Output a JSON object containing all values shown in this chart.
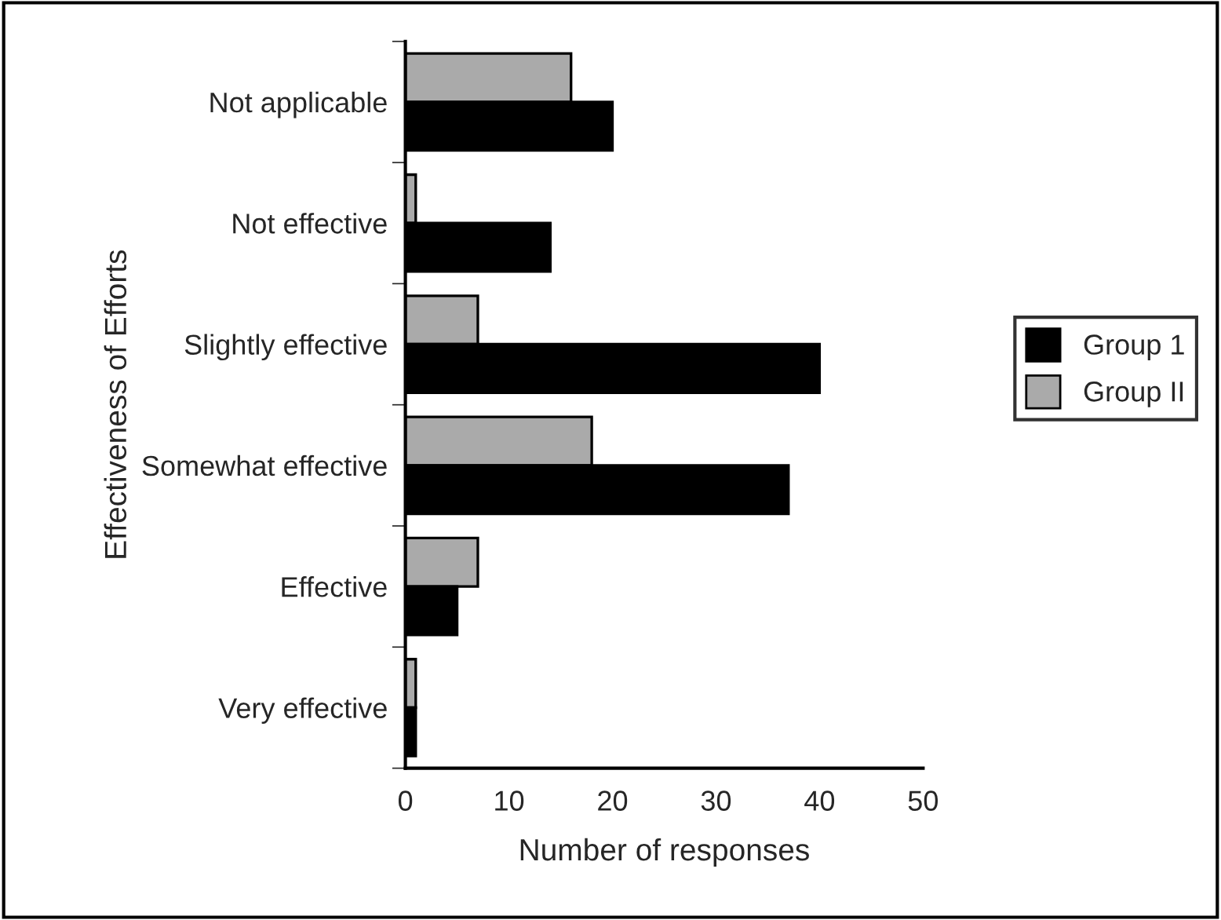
{
  "chart_data": {
    "type": "bar",
    "orientation": "horizontal",
    "xlabel": "Number of responses",
    "ylabel": "Effectiveness of Efforts",
    "categories": [
      "Not applicable",
      "Not effective",
      "Slightly effective",
      "Somewhat effective",
      "Effective",
      "Very effective"
    ],
    "series": [
      {
        "name": "Group II",
        "color": "#aaaaaa",
        "values": [
          16,
          1,
          7,
          18,
          7,
          1
        ]
      },
      {
        "name": "Group 1",
        "color": "#000000",
        "values": [
          20,
          14,
          40,
          37,
          5,
          1
        ]
      }
    ],
    "xlim": [
      0,
      50
    ],
    "xticks": [
      0,
      10,
      20,
      30,
      40,
      50
    ],
    "grid": false,
    "legend": "right"
  }
}
